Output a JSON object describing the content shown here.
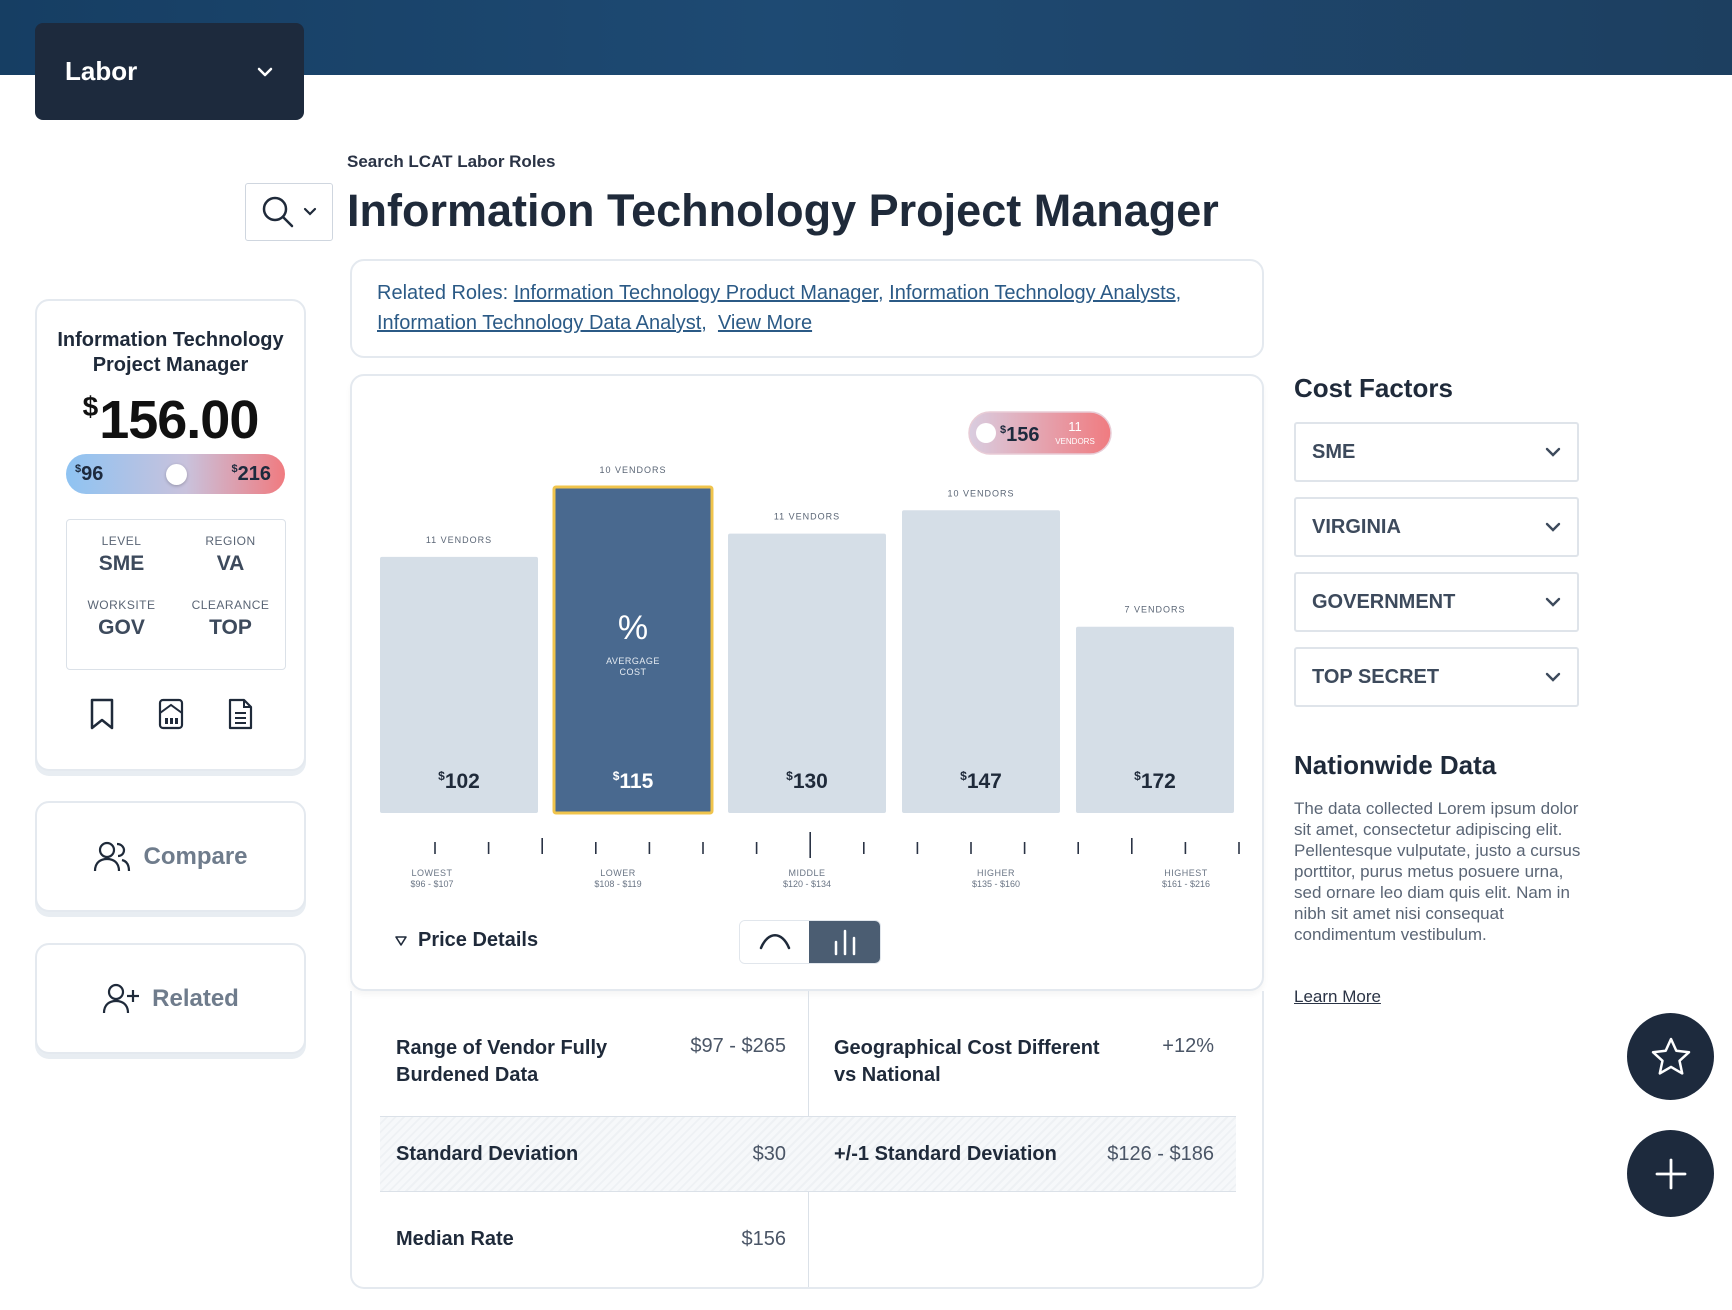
{
  "header": {
    "category_select": "Labor"
  },
  "search": {
    "caption": "Search LCAT Labor Roles"
  },
  "page_title": "Information Technology Project Manager",
  "related_roles": {
    "prefix": "Related Roles:",
    "links": [
      "Information Technology Product Manager",
      "Information Technology Analysts",
      "Information Technology Data Analyst"
    ],
    "view_more": "View More"
  },
  "role_card": {
    "title": "Information Technology Project Manager",
    "currency": "$",
    "price": "156.00",
    "range_low": "96",
    "range_high": "216",
    "range_position": 0.5,
    "attributes": [
      {
        "key": "LEVEL",
        "value": "SME"
      },
      {
        "key": "REGION",
        "value": "VA"
      },
      {
        "key": "WORKSITE",
        "value": "GOV"
      },
      {
        "key": "CLEARANCE",
        "value": "TOP"
      }
    ],
    "icons": [
      "bookmark-icon",
      "building-icon",
      "document-icon"
    ]
  },
  "side_buttons": {
    "compare": "Compare",
    "related": "Related"
  },
  "chart_data": {
    "type": "bar",
    "categories": [
      "LOWEST",
      "LOWER",
      "MIDDLE",
      "HIGHER",
      "HIGHEST"
    ],
    "ranges": [
      "$96 - $107",
      "$108 - $119",
      "$120 - $134",
      "$135 - $160",
      "$161 - $216"
    ],
    "values": [
      102,
      115,
      130,
      147,
      172
    ],
    "vendor_counts": [
      "11 VENDORS",
      "10 VENDORS",
      "11 VENDORS",
      "10 VENDORS",
      "7 VENDORS"
    ],
    "bar_heights_relative": [
      11,
      14,
      12,
      13,
      8
    ],
    "highlighted_index": 1,
    "highlight_label": [
      "AVERGAGE",
      "COST"
    ],
    "marker": {
      "value": "156",
      "vendors_count": "11",
      "vendors_label": "VENDORS"
    },
    "currency": "$",
    "colors": {
      "bar": "#d5dee7",
      "highlight": "#49698f",
      "highlight_border": "#f0c44c"
    }
  },
  "price_details": {
    "label": "Price Details",
    "views": [
      "line-view",
      "bar-view"
    ],
    "active_view": "bar-view"
  },
  "stats": [
    {
      "label": "Range of Vendor Fully Burdened Data",
      "value": "$97 - $265"
    },
    {
      "label": "Geographical Cost Different vs National",
      "value": "+12%"
    },
    {
      "label": "Standard Deviation",
      "value": "$30"
    },
    {
      "label": "+/-1 Standard Deviation",
      "value": "$126 - $186"
    },
    {
      "label": "Median Rate",
      "value": "$156"
    }
  ],
  "cost_factors": {
    "title": "Cost Factors",
    "selects": [
      "SME",
      "VIRGINIA",
      "GOVERNMENT",
      "TOP SECRET"
    ]
  },
  "nationwide": {
    "title": "Nationwide Data",
    "body": "The data collected Lorem ipsum dolor sit amet, consectetur adipiscing elit. Pellentesque vulputate, justo a cursus porttitor, purus metus posuere urna, sed ornare leo diam quis elit. Nam in nibh sit amet nisi consequat condimentum vestibulum.",
    "link": "Learn More"
  }
}
